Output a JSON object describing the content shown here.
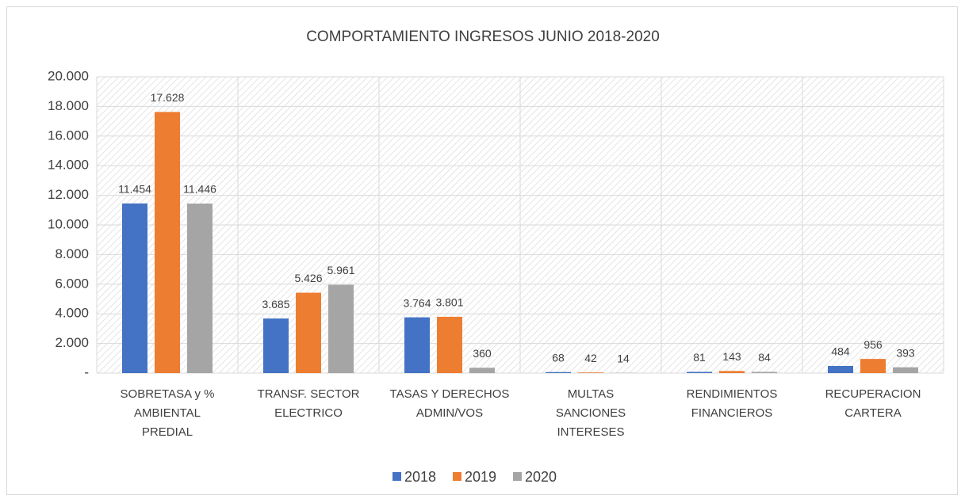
{
  "chart_data": {
    "type": "bar",
    "title": "COMPORTAMIENTO INGRESOS JUNIO 2018-2020",
    "categories": [
      [
        "SOBRETASA y %",
        "AMBIENTAL",
        "PREDIAL"
      ],
      [
        "TRANSF. SECTOR",
        "ELECTRICO"
      ],
      [
        "TASAS Y DERECHOS",
        "ADMIN/VOS"
      ],
      [
        "MULTAS",
        "SANCIONES",
        "INTERESES"
      ],
      [
        "RENDIMIENTOS",
        "FINANCIEROS"
      ],
      [
        "RECUPERACION",
        "CARTERA"
      ]
    ],
    "series": [
      {
        "name": "2018",
        "color": "#4472c4",
        "values": [
          11454,
          3685,
          3764,
          68,
          81,
          484
        ],
        "value_labels": [
          "11.454",
          "3.685",
          "3.764",
          "68",
          "81",
          "484"
        ]
      },
      {
        "name": "2019",
        "color": "#ed7d31",
        "values": [
          17628,
          5426,
          3801,
          42,
          143,
          956
        ],
        "value_labels": [
          "17.628",
          "5.426",
          "3.801",
          "42",
          "143",
          "956"
        ]
      },
      {
        "name": "2020",
        "color": "#a5a5a5",
        "values": [
          11446,
          5961,
          360,
          14,
          84,
          393
        ],
        "value_labels": [
          "11.446",
          "5.961",
          "360",
          "14",
          "84",
          "393"
        ]
      }
    ],
    "ylim": [
      0,
      20000
    ],
    "yticks": [
      {
        "value": 0,
        "label": "-"
      },
      {
        "value": 2000,
        "label": "2.000"
      },
      {
        "value": 4000,
        "label": "4.000"
      },
      {
        "value": 6000,
        "label": "6.000"
      },
      {
        "value": 8000,
        "label": "8.000"
      },
      {
        "value": 10000,
        "label": "10.000"
      },
      {
        "value": 12000,
        "label": "12.000"
      },
      {
        "value": 14000,
        "label": "14.000"
      },
      {
        "value": 16000,
        "label": "16.000"
      },
      {
        "value": 18000,
        "label": "18.000"
      },
      {
        "value": 20000,
        "label": "20.000"
      }
    ],
    "grid": true,
    "legend": "bottom"
  }
}
